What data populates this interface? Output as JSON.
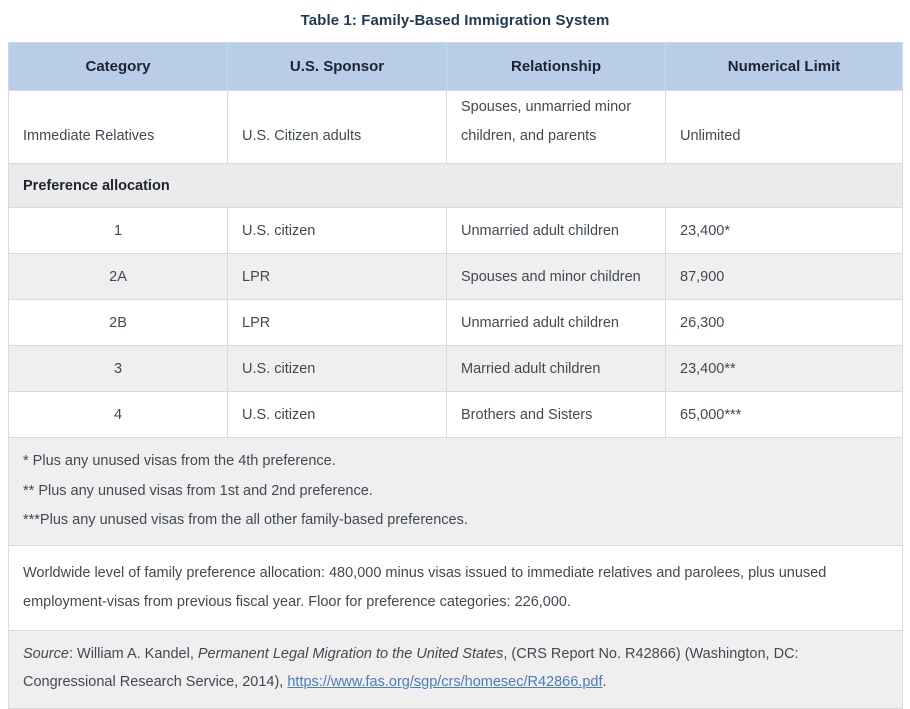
{
  "title": "Table 1: Family-Based Immigration System",
  "table": {
    "headers": {
      "category": "Category",
      "sponsor": "U.S. Sponsor",
      "relationship": "Relationship",
      "limit": "Numerical Limit"
    },
    "immediate_row": {
      "category": "Immediate Relatives",
      "sponsor": "U.S. Citizen adults",
      "relationship": "Spouses, unmarried minor children, and parents",
      "limit": "Unlimited"
    },
    "section_header": "Preference allocation",
    "preference_rows": [
      {
        "category": "1",
        "sponsor": "U.S. citizen",
        "relationship": "Unmarried adult children",
        "limit": "23,400*"
      },
      {
        "category": "2A",
        "sponsor": "LPR",
        "relationship": "Spouses and minor children",
        "limit": "87,900"
      },
      {
        "category": "2B",
        "sponsor": "LPR",
        "relationship": "Unmarried adult children",
        "limit": "26,300"
      },
      {
        "category": "3",
        "sponsor": "U.S. citizen",
        "relationship": "Married adult children",
        "limit": "23,400**"
      },
      {
        "category": "4",
        "sponsor": "U.S. citizen",
        "relationship": "Brothers and Sisters",
        "limit": "65,000***"
      }
    ],
    "footnotes": [
      "* Plus any unused visas from the 4th preference.",
      "** Plus any unused visas from 1st and 2nd preference.",
      "***Plus any unused visas from the all other family-based preferences."
    ],
    "worldwide_note": "Worldwide level of family preference allocation: 480,000 minus visas issued to immediate relatives and parolees, plus unused employment-visas from previous fiscal year. Floor for preference categories: 226,000.",
    "source": {
      "label": "Source",
      "after_label": ":  William A. Kandel, ",
      "work_title": "Permanent Legal Migration to the United States",
      "middle": ", (CRS Report No. R42866) (Washington, DC: Congressional Research Service, 2014), ",
      "link": "https://www.fas.org/sgp/crs/homesec/R42866.pdf",
      "suffix": "."
    }
  },
  "colors": {
    "header_bg": "#b9cde8",
    "header_text": "#1b2430",
    "body_text": "#3f4a54",
    "row_alt_bg": "#efefef",
    "section_bg": "#ebebeb",
    "border": "#d9d9d9",
    "link": "#4a7ebb"
  }
}
